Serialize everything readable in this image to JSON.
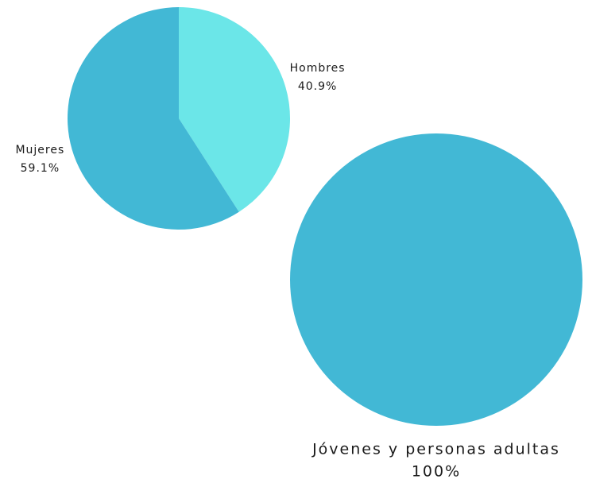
{
  "chart_data": [
    {
      "type": "pie",
      "categories": [
        "Hombres",
        "Mujeres"
      ],
      "values": [
        40.9,
        59.1
      ],
      "value_labels": [
        "40.9%",
        "59.1%"
      ],
      "colors": [
        "#6be6e8",
        "#42b8d5"
      ]
    },
    {
      "type": "pie",
      "categories": [
        "Jóvenes y personas adultas"
      ],
      "values": [
        100
      ],
      "value_labels": [
        "100%"
      ],
      "colors": [
        "#42b8d5"
      ]
    }
  ]
}
